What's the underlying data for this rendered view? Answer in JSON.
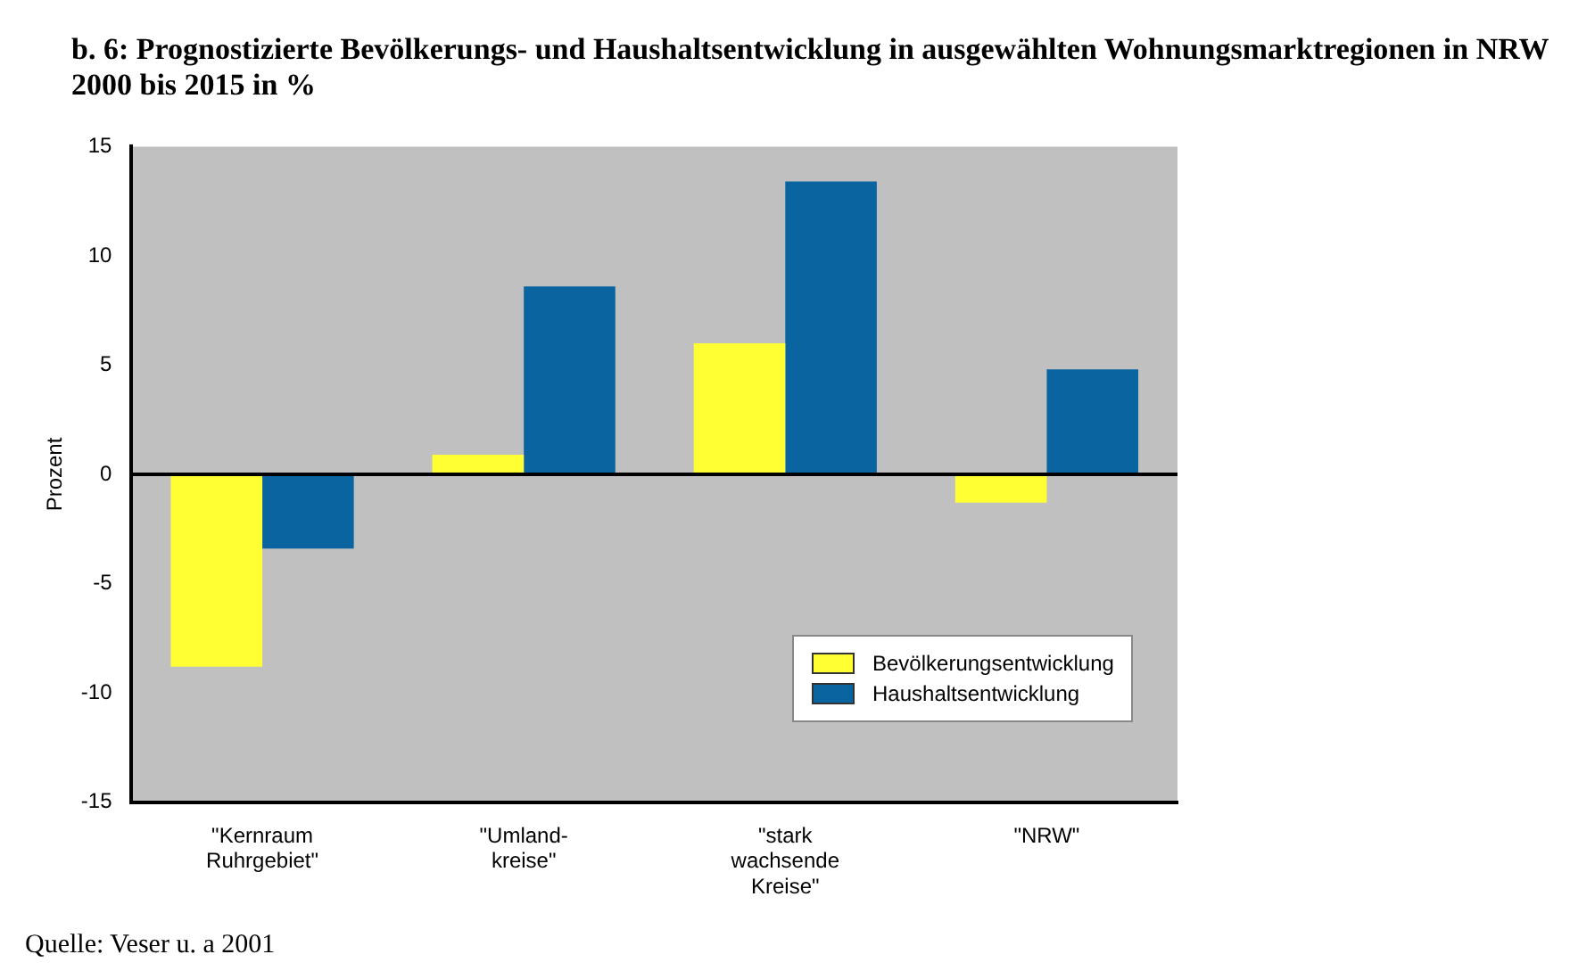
{
  "chart_data": {
    "type": "bar",
    "title": "b. 6: Prognostizierte Bevölkerungs- und Haushaltsentwicklung in ausgewählten Wohnungsmarktregionen in NRW 2000 bis 2015 in %",
    "ylabel": "Prozent",
    "categories": [
      "\"Kernraum\nRuhrgebiet\"",
      "\"Umland-\nkreise\"",
      "\"stark\nwachsende\nKreise\"",
      "\"NRW\""
    ],
    "series": [
      {
        "name": "Bevölkerungsentwicklung",
        "color": "#ffff33",
        "values": [
          -8.8,
          0.9,
          6.0,
          -1.3
        ]
      },
      {
        "name": "Haushaltsentwicklung",
        "color": "#0a64a0",
        "values": [
          -3.4,
          8.6,
          13.4,
          4.8
        ]
      }
    ],
    "ylim": [
      -15,
      15
    ],
    "yticks": [
      -15,
      -10,
      -5,
      0,
      5,
      10,
      15
    ],
    "grid": false,
    "legend": "bottom right",
    "ref_lines": [
      {
        "axis": "y",
        "value": 0,
        "color": "#000000"
      }
    ],
    "annotations": [
      "Quelle: Veser u. a 2001"
    ]
  }
}
